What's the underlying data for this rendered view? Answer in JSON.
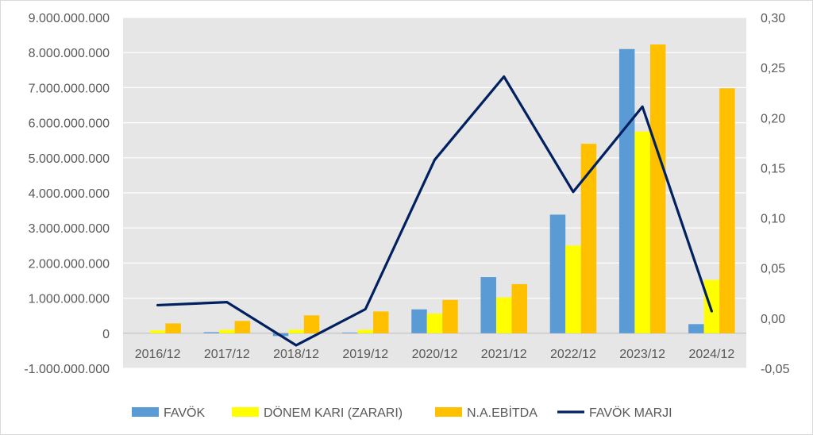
{
  "chart_data": {
    "type": "bar",
    "categories": [
      "2016/12",
      "2017/12",
      "2018/12",
      "2019/12",
      "2020/12",
      "2021/12",
      "2022/12",
      "2023/12",
      "2024/12"
    ],
    "series": [
      {
        "name": "FAVÖK",
        "type": "bar",
        "axis": "left",
        "color": "#5B9BD5",
        "values": [
          0,
          30000000,
          -80000000,
          20000000,
          680000000,
          1600000000,
          3380000000,
          8100000000,
          260000000
        ]
      },
      {
        "name": "DÖNEM KARI (ZARARI)",
        "type": "bar",
        "axis": "left",
        "color": "#FFFF00",
        "values": [
          80000000,
          100000000,
          100000000,
          100000000,
          560000000,
          1020000000,
          2500000000,
          5750000000,
          1520000000
        ]
      },
      {
        "name": "N.A.EBİTDA",
        "type": "bar",
        "axis": "left",
        "color": "#FFC000",
        "values": [
          280000000,
          350000000,
          510000000,
          620000000,
          950000000,
          1400000000,
          5400000000,
          8230000000,
          6980000000
        ]
      },
      {
        "name": "FAVÖK MARJI",
        "type": "line",
        "axis": "right",
        "color": "#002060",
        "values": [
          0.013,
          0.016,
          -0.027,
          0.009,
          0.158,
          0.241,
          0.126,
          0.211,
          0.007
        ]
      }
    ],
    "y_left": {
      "ylim": [
        -1000000000,
        9000000000
      ],
      "ticks": [
        -1000000000,
        0,
        1000000000,
        2000000000,
        3000000000,
        4000000000,
        5000000000,
        6000000000,
        7000000000,
        8000000000,
        9000000000
      ],
      "tick_labels": [
        "-1.000.000.000",
        "0",
        "1.000.000.000",
        "2.000.000.000",
        "3.000.000.000",
        "4.000.000.000",
        "5.000.000.000",
        "6.000.000.000",
        "7.000.000.000",
        "8.000.000.000",
        "9.000.000.000"
      ]
    },
    "y_right": {
      "ylim": [
        -0.05,
        0.3
      ],
      "ticks": [
        -0.05,
        0,
        0.05,
        0.1,
        0.15,
        0.2,
        0.25,
        0.3
      ],
      "tick_labels": [
        "-0,05",
        "0,00",
        "0,05",
        "0,10",
        "0,15",
        "0,20",
        "0,25",
        "0,30"
      ]
    },
    "grid": true,
    "legend_position": "bottom",
    "plot_background": "#E7E6E6"
  }
}
